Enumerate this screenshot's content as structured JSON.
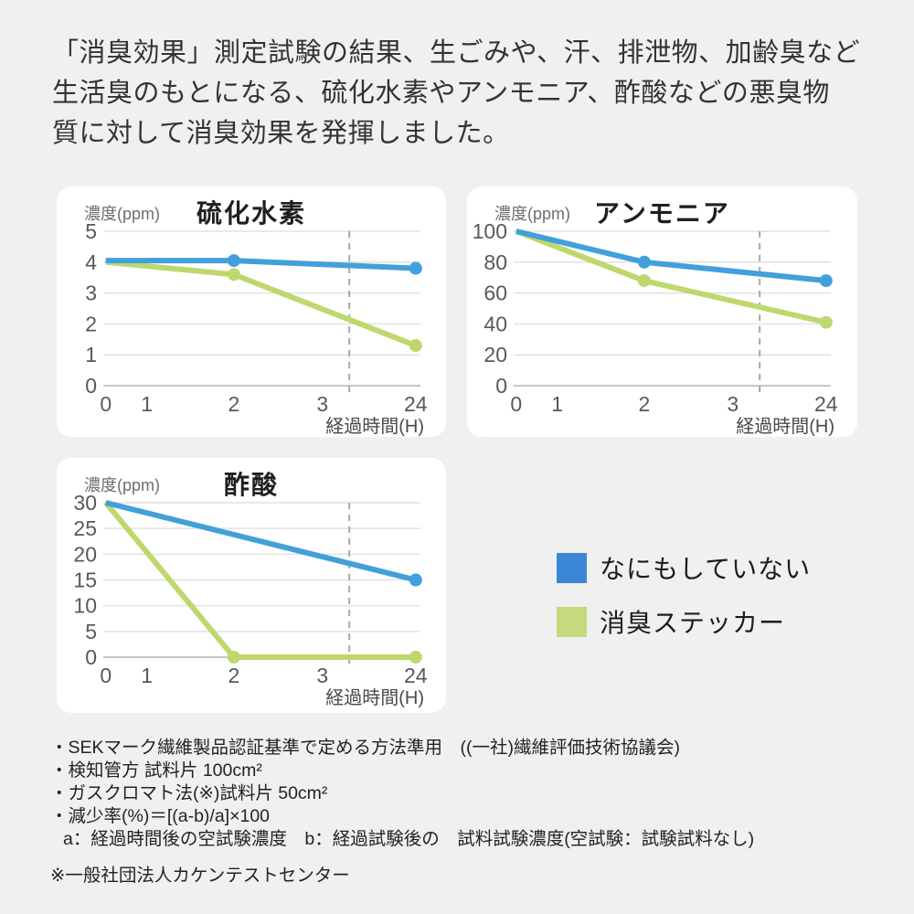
{
  "header": {
    "lines": [
      "「消臭効果」測定試験の結果、生ごみや、汗、排泄物、加齢臭など",
      "生活臭のもとになる、硫化水素やアンモニア、酢酸などの悪臭物",
      "質に対して消臭効果を発揮しました。"
    ]
  },
  "colors": {
    "line_blue": "#41a0db",
    "line_green": "#bed86e",
    "legend_blue": "#3c86d8",
    "legend_green": "#c5d97d",
    "grid": "#e2e2e2",
    "axis": "#c6c6c6",
    "dashed_guide": "#a8a8a8",
    "tick_text": "#595959",
    "axis_caption_text": "#4a4a4a",
    "card_bg": "#ffffff",
    "page_bg": "#f0f0f0"
  },
  "legend": {
    "items": [
      {
        "label": "なにもしていない",
        "color": "#3c86d8"
      },
      {
        "label": "消臭ステッカー",
        "color": "#c5d97d"
      }
    ]
  },
  "chart_data": [
    {
      "type": "line",
      "title": "硫化水素",
      "ylabel": "濃度(ppm)",
      "xlabel": "経過時間(H)",
      "x_tick_labels": [
        "0",
        "1",
        "2",
        "3",
        "24"
      ],
      "y_ticks": [
        0,
        1,
        2,
        3,
        4,
        5
      ],
      "ylim": [
        0,
        5
      ],
      "dashed_guide_between": [
        "3",
        "24"
      ],
      "series": [
        {
          "name": "なにもしていない",
          "color": "#41a0db",
          "points": [
            {
              "x": 0,
              "y": 4.05,
              "dot": false
            },
            {
              "x": 2,
              "y": 4.05,
              "dot": true
            },
            {
              "x": 24,
              "y": 3.8,
              "dot": true
            }
          ]
        },
        {
          "name": "消臭ステッカー",
          "color": "#bed86e",
          "points": [
            {
              "x": 0,
              "y": 4.0,
              "dot": false
            },
            {
              "x": 2,
              "y": 3.6,
              "dot": true
            },
            {
              "x": 24,
              "y": 1.3,
              "dot": true
            }
          ]
        }
      ]
    },
    {
      "type": "line",
      "title": "アンモニア",
      "ylabel": "濃度(ppm)",
      "xlabel": "経過時間(H)",
      "x_tick_labels": [
        "0",
        "1",
        "2",
        "3",
        "24"
      ],
      "y_ticks": [
        0,
        20,
        40,
        60,
        80,
        100
      ],
      "ylim": [
        0,
        100
      ],
      "dashed_guide_between": [
        "3",
        "24"
      ],
      "series": [
        {
          "name": "なにもしていない",
          "color": "#41a0db",
          "points": [
            {
              "x": 0,
              "y": 100,
              "dot": false
            },
            {
              "x": 2,
              "y": 80,
              "dot": true
            },
            {
              "x": 24,
              "y": 68,
              "dot": true
            }
          ]
        },
        {
          "name": "消臭ステッカー",
          "color": "#bed86e",
          "points": [
            {
              "x": 0,
              "y": 100,
              "dot": false
            },
            {
              "x": 2,
              "y": 68,
              "dot": true
            },
            {
              "x": 24,
              "y": 41,
              "dot": true
            }
          ]
        }
      ]
    },
    {
      "type": "line",
      "title": "酢酸",
      "ylabel": "濃度(ppm)",
      "xlabel": "経過時間(H)",
      "x_tick_labels": [
        "0",
        "1",
        "2",
        "3",
        "24"
      ],
      "y_ticks": [
        0,
        5,
        10,
        15,
        20,
        25,
        30
      ],
      "ylim": [
        0,
        30
      ],
      "dashed_guide_between": [
        "3",
        "24"
      ],
      "series": [
        {
          "name": "なにもしていない",
          "color": "#41a0db",
          "points": [
            {
              "x": 0,
              "y": 30,
              "dot": false
            },
            {
              "x": 24,
              "y": 15,
              "dot": true
            }
          ]
        },
        {
          "name": "消臭ステッカー",
          "color": "#bed86e",
          "points": [
            {
              "x": 0,
              "y": 30,
              "dot": false
            },
            {
              "x": 2,
              "y": 0,
              "dot": true
            },
            {
              "x": 24,
              "y": 0,
              "dot": true
            }
          ]
        }
      ]
    }
  ],
  "notes": {
    "lines": [
      "・SEKマーク繊維製品認証基準で定める方法準用　((一社)繊維評価技術協議会)",
      "・検知管方 試料片 100cm²",
      "・ガスクロマト法(※)試料片 50cm²",
      "・減少率(%)＝[(a-b)/a]×100",
      "a：経過時間後の空試験濃度　b：経過試験後の　試料試験濃度(空試験：試験試料なし)"
    ],
    "source": "※一般社団法人カケンテストセンター"
  }
}
